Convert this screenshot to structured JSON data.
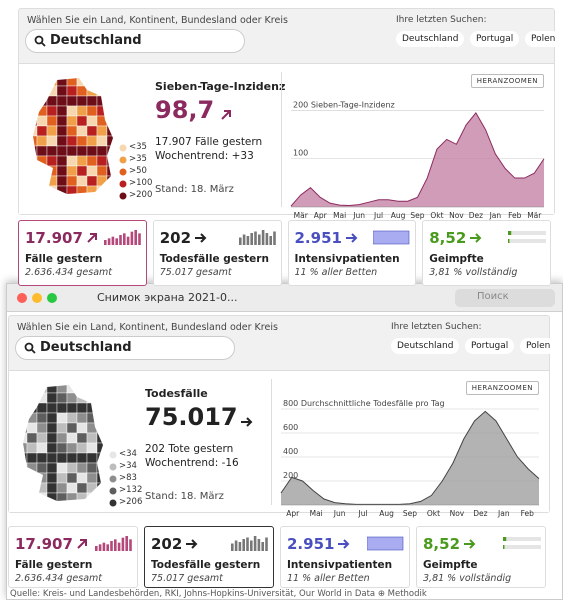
{
  "dashboards": [
    {
      "search": {
        "prompt": "Wählen Sie ein Land, Kontinent, Bundesland oder Kreis",
        "value": "Deutschland"
      },
      "recent": {
        "label": "Ihre letzten Suchen:",
        "items": [
          "Deutschland",
          "Portugal",
          "Polen"
        ]
      },
      "map_legend": [
        "<35",
        ">35",
        ">50",
        ">100",
        ">200"
      ],
      "map_colors": [
        "#f6d7b0",
        "#f0a048",
        "#e0601f",
        "#b8201f",
        "#6d0d17"
      ],
      "metric": {
        "title": "Sieben-Tage-Inzidenz",
        "value": "98,7",
        "line1": "17.907 Fälle gestern",
        "line2": "Wochentrend: +33",
        "date": "Stand: 18. März",
        "color": "#8b2a5e"
      },
      "zoom": "HERANZOOMEN",
      "chart": {
        "type": "area",
        "color": "#c27ba0",
        "ylim": [
          0,
          230
        ],
        "yticks": [
          {
            "value": 200,
            "label": "200 Sieben-Tage-Inzidenz"
          },
          100
        ],
        "x_labels": [
          "Mär",
          "Apr",
          "Mai",
          "Jun",
          "Jul",
          "Aug",
          "Sep",
          "Okt",
          "Nov",
          "Dez",
          "Jan",
          "Feb",
          "Mär"
        ],
        "values": [
          2,
          25,
          40,
          20,
          8,
          4,
          3,
          5,
          10,
          15,
          15,
          12,
          12,
          20,
          60,
          120,
          140,
          130,
          170,
          195,
          160,
          110,
          80,
          60,
          60,
          70,
          100
        ]
      },
      "selected_card": 0,
      "cards": [
        {
          "value": "17.907",
          "title": "Fälle gestern",
          "sub": "2.636.434 gesamt",
          "color": "#8b2a5e",
          "trend": [
            3,
            4,
            5,
            4,
            6,
            7,
            5,
            8,
            9,
            7
          ]
        },
        {
          "value": "202",
          "title": "Todesfälle gestern",
          "sub": "75.017 gesamt",
          "color": "#222222",
          "trend": [
            5,
            7,
            6,
            8,
            9,
            7,
            10,
            8,
            6,
            9
          ]
        },
        {
          "value": "2.951",
          "title": "Intensivpatienten",
          "sub": "11 % aller Betten",
          "color": "#4a4fbf"
        },
        {
          "value": "8,52",
          "title": "Geimpfte",
          "sub": "3,81 % vollständig",
          "color": "#4a9a1e",
          "progress": [
            8.52,
            3.81
          ]
        }
      ]
    },
    {
      "search": {
        "prompt": "Wählen Sie ein Land, Kontinent, Bundesland oder Kreis",
        "value": "Deutschland"
      },
      "recent": {
        "label": "Ihre letzten Suchen:",
        "items": [
          "Deutschland",
          "Portugal",
          "Polen"
        ]
      },
      "map_legend": [
        "<34",
        ">34",
        ">83",
        ">132",
        ">206"
      ],
      "map_colors": [
        "#e6e6e6",
        "#bdbdbd",
        "#8e8e8e",
        "#5e5e5e",
        "#333333"
      ],
      "metric": {
        "title": "Todesfälle",
        "value": "75.017",
        "line1": "202 Tote gestern",
        "line2": "Wochentrend: -16",
        "date": "Stand: 18. März",
        "color": "#222222"
      },
      "zoom": "HERANZOOMEN",
      "chart": {
        "type": "area",
        "color": "#9a9a9a",
        "ylim": [
          0,
          850
        ],
        "yticks": [
          {
            "value": 800,
            "label": "800 Durchschnittliche Todesfälle pro Tag"
          },
          600,
          400,
          200
        ],
        "x_labels": [
          "Apr",
          "Mai",
          "Jun",
          "Jul",
          "Aug",
          "Sep",
          "Okt",
          "Nov",
          "Dez",
          "Jan",
          "Feb"
        ],
        "values": [
          100,
          230,
          200,
          120,
          50,
          20,
          10,
          5,
          5,
          5,
          5,
          5,
          10,
          30,
          80,
          200,
          350,
          550,
          700,
          780,
          700,
          550,
          400,
          300,
          220
        ]
      },
      "selected_card": 1,
      "cards": [
        {
          "value": "17.907",
          "title": "Fälle gestern",
          "sub": "2.636.434 gesamt",
          "color": "#8b2a5e",
          "trend": [
            3,
            4,
            5,
            4,
            6,
            7,
            5,
            8,
            9,
            7
          ]
        },
        {
          "value": "202",
          "title": "Todesfälle gestern",
          "sub": "75.017 gesamt",
          "color": "#222222",
          "trend": [
            5,
            7,
            6,
            8,
            9,
            7,
            10,
            8,
            6,
            9
          ]
        },
        {
          "value": "2.951",
          "title": "Intensivpatienten",
          "sub": "11 % aller Betten",
          "color": "#4a4fbf"
        },
        {
          "value": "8,52",
          "title": "Geimpfte",
          "sub": "3,81 % vollständig",
          "color": "#4a9a1e",
          "progress": [
            8.52,
            3.81
          ]
        }
      ]
    }
  ],
  "window": {
    "title": "Снимок экрана 2021-0...",
    "search_placeholder": "Поиск"
  },
  "footer": "Quelle: Kreis- und Landesbehörden, RKI, Johns-Hopkins-Universität, Our World in Data ⊕ Methodik"
}
